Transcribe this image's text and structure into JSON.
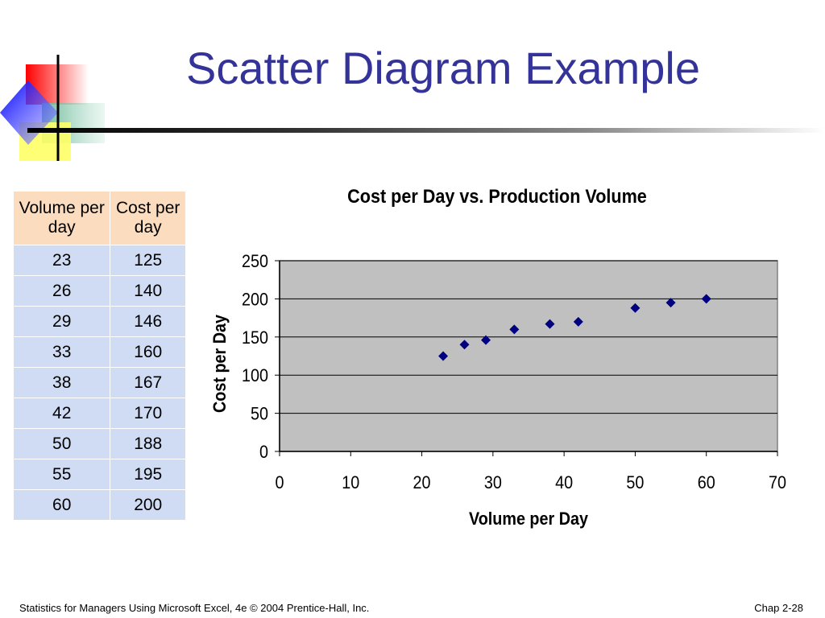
{
  "slide": {
    "title": "Scatter Diagram Example",
    "footer_left": "Statistics for Managers Using Microsoft Excel, 4e © 2004 Prentice-Hall, Inc.",
    "footer_right": "Chap 2-28"
  },
  "table": {
    "headers": [
      "Volume per day",
      "Cost per day"
    ],
    "rows": [
      [
        "23",
        "125"
      ],
      [
        "26",
        "140"
      ],
      [
        "29",
        "146"
      ],
      [
        "33",
        "160"
      ],
      [
        "38",
        "167"
      ],
      [
        "42",
        "170"
      ],
      [
        "50",
        "188"
      ],
      [
        "55",
        "195"
      ],
      [
        "60",
        "200"
      ]
    ]
  },
  "chart_data": {
    "type": "scatter",
    "title": "Cost per Day vs. Production Volume",
    "xlabel": "Volume per Day",
    "ylabel": "Cost per Day",
    "xlim": [
      0,
      70
    ],
    "ylim": [
      0,
      250
    ],
    "xticks": [
      0,
      10,
      20,
      30,
      40,
      50,
      60,
      70
    ],
    "yticks": [
      0,
      50,
      100,
      150,
      200,
      250
    ],
    "grid": "horizontal",
    "legend": "none",
    "marker": "diamond",
    "marker_color": "#000080",
    "plot_background": "#c0c0c0",
    "points": [
      {
        "x": 23,
        "y": 125
      },
      {
        "x": 26,
        "y": 140
      },
      {
        "x": 29,
        "y": 146
      },
      {
        "x": 33,
        "y": 160
      },
      {
        "x": 38,
        "y": 167
      },
      {
        "x": 42,
        "y": 170
      },
      {
        "x": 50,
        "y": 188
      },
      {
        "x": 55,
        "y": 195
      },
      {
        "x": 60,
        "y": 200
      }
    ]
  },
  "colors": {
    "title": "#333399",
    "table_header_bg": "#fbdcbf",
    "table_body_bg": "#cfdcf4"
  }
}
